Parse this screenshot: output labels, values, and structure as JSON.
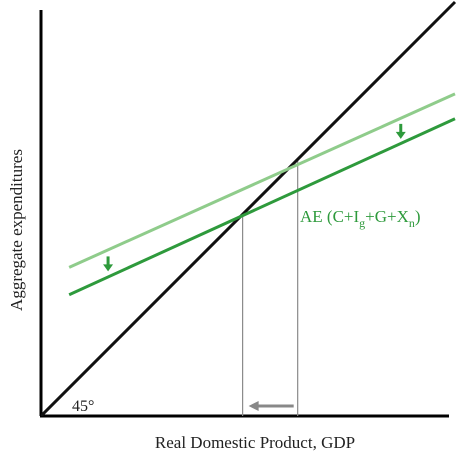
{
  "chart_data": {
    "type": "line",
    "xlabel": "Real Domestic Product, GDP",
    "ylabel": "Aggregate expenditures",
    "xlim": [
      0,
      100
    ],
    "ylim": [
      0,
      100
    ],
    "series": [
      {
        "key": "forty_five",
        "x": [
          0,
          100
        ],
        "y": [
          0,
          100
        ],
        "color": "#111111",
        "annotation": "45°"
      },
      {
        "key": "ae_original",
        "x": [
          6.8,
          100
        ],
        "y": [
          35.9,
          77.8
        ],
        "color": "#8fcc8b"
      },
      {
        "key": "ae_new",
        "x": [
          6.8,
          100
        ],
        "y": [
          29.3,
          71.8
        ],
        "color": "#2e9a3c",
        "label_parts": {
          "prefix": "AE (C+I",
          "sub": "g",
          "suffix": "+G+X",
          "tail_sub": "n",
          "close": ")"
        }
      }
    ],
    "equilibria": [
      {
        "x": 62.0,
        "y": 62.0,
        "on": "ae_original"
      },
      {
        "x": 48.7,
        "y": 48.7,
        "on": "ae_new"
      }
    ],
    "shift_arrows": [
      {
        "x": 86.9,
        "direction": "down",
        "color": "#2e9a3c"
      },
      {
        "x": 16.2,
        "direction": "down",
        "color": "#2e9a3c"
      },
      {
        "from_x": 62.0,
        "to_x": 48.7,
        "direction": "left",
        "color": "#888888"
      }
    ]
  }
}
